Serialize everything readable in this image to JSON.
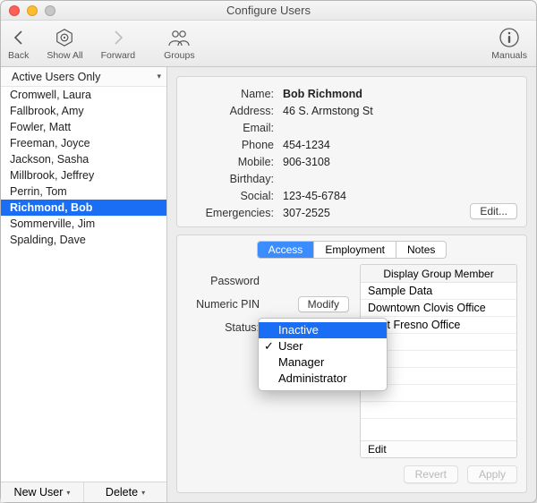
{
  "window": {
    "title": "Configure Users"
  },
  "colors": {
    "selection": "#1a6ef4",
    "panel_bg": "#f6f6f6",
    "border": "#c7c7c7",
    "window_bg": "#ececec"
  },
  "toolbar": {
    "back_label": "Back",
    "showall_label": "Show All",
    "forward_label": "Forward",
    "groups_label": "Groups",
    "manuals_label": "Manuals"
  },
  "sidebar": {
    "filter_label": "Active Users Only",
    "users": [
      {
        "name": "Cromwell, Laura",
        "selected": false
      },
      {
        "name": "Fallbrook, Amy",
        "selected": false
      },
      {
        "name": "Fowler, Matt",
        "selected": false
      },
      {
        "name": "Freeman, Joyce",
        "selected": false
      },
      {
        "name": "Jackson, Sasha",
        "selected": false
      },
      {
        "name": "Millbrook, Jeffrey",
        "selected": false
      },
      {
        "name": "Perrin, Tom",
        "selected": false
      },
      {
        "name": "Richmond, Bob",
        "selected": true
      },
      {
        "name": "Sommerville, Jim",
        "selected": false
      },
      {
        "name": "Spalding, Dave",
        "selected": false
      }
    ],
    "new_user_label": "New User",
    "delete_label": "Delete"
  },
  "info": {
    "labels": {
      "name": "Name:",
      "address": "Address:",
      "email": "Email:",
      "phone": "Phone",
      "mobile": "Mobile:",
      "birthday": "Birthday:",
      "social": "Social:",
      "emergencies": "Emergencies:"
    },
    "values": {
      "name": "Bob Richmond",
      "address": "46 S. Armstong St",
      "email": "",
      "phone": "454-1234",
      "mobile": "906-3108",
      "birthday": "",
      "social": "123-45-6784",
      "emergencies": "307-2525"
    },
    "edit_label": "Edit..."
  },
  "tabs": {
    "items": [
      {
        "label": "Access",
        "active": true
      },
      {
        "label": "Employment",
        "active": false
      },
      {
        "label": "Notes",
        "active": false
      }
    ]
  },
  "access": {
    "password_label": "Password",
    "pin_label": "Numeric PIN",
    "modify_label": "Modify",
    "status_label": "Status:",
    "status_options": [
      {
        "label": "Inactive",
        "selected": true,
        "checked": false
      },
      {
        "label": "User",
        "selected": false,
        "checked": true
      },
      {
        "label": "Manager",
        "selected": false,
        "checked": false
      },
      {
        "label": "Administrator",
        "selected": false,
        "checked": false
      }
    ],
    "group_header": "Display Group Member",
    "groups": [
      "Sample Data",
      "Downtown Clovis Office",
      "East Fresno Office"
    ],
    "group_edit_label": "Edit"
  },
  "footer": {
    "revert_label": "Revert",
    "apply_label": "Apply"
  }
}
